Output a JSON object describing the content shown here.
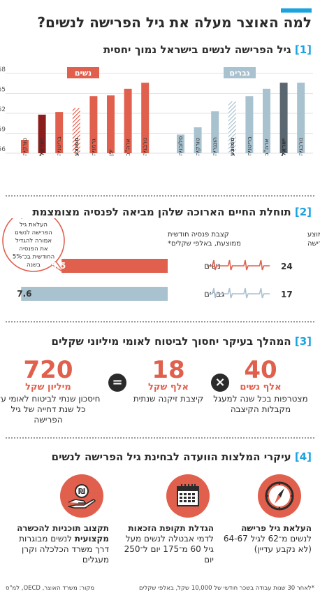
{
  "header": {
    "title": "למה האוצר מעלה את גיל הפרישה לנשים?"
  },
  "section1": {
    "num": "[1]",
    "title": "גיל הפרישה לנשים בישראל נמוך יחסית",
    "y_ticks": [
      "68",
      "65",
      "62",
      "59",
      "56"
    ],
    "women_label": "נשים",
    "men_label": "גברים",
    "colors": {
      "women": "#e0604d",
      "women_israel": "#8b1d1d",
      "men": "#a9c2cf",
      "men_israel": "#5a6670"
    },
    "chart_data": [
      {
        "type": "bar",
        "title": "נשים",
        "categories": [
          "טורקיה",
          "ישראל",
          "בריטניה",
          "ממוצע",
          "גרמניה",
          "יפן",
          "ארה\"ב",
          "נורבגיה"
        ],
        "values": [
          58,
          61.8,
          62.2,
          62.8,
          64.6,
          64.7,
          65.7,
          66.6
        ],
        "highlight": [
          "ישראל",
          "ממוצע"
        ],
        "ylim": [
          56,
          68
        ]
      },
      {
        "type": "bar",
        "title": "גברים",
        "categories": [
          "סלובניה",
          "טורקיה",
          "הונגריה",
          "ממוצע",
          "בריטניה",
          "ארה\"ב",
          "ישראל",
          "נורבגיה"
        ],
        "values": [
          58.8,
          59.9,
          62.3,
          63.8,
          64.6,
          65.7,
          66.6,
          66.6
        ],
        "highlight": [
          "ישראל",
          "ממוצע"
        ],
        "ylim": [
          56,
          68
        ]
      }
    ]
  },
  "section2": {
    "num": "[2]",
    "title": "תוחלת החיים הארוכה שלהן מביאה לפנסיה מצומצמת",
    "col_years_label": "מס' שנות החיים הממוצע לאחר הפרישה",
    "col_pension_label": "קצבת פנסיה חודשית ממוצעת, באלפי שקלים*",
    "callout": "תיאורטית, העלאת גיל הפרישה לנשים אמורה להגדיל את הפנסיה החודשית בכ־5% בשנה",
    "rows": [
      {
        "label": "נשים",
        "years": "24",
        "pension": "5.5",
        "pension_value": 5.5,
        "color": "#e0604d"
      },
      {
        "label": "גברים",
        "years": "17",
        "pension": "7.6",
        "pension_value": 7.6,
        "color": "#a9c2cf"
      }
    ]
  },
  "section3": {
    "num": "[3]",
    "title": "המהלך בעיקר יחסוך לביטוח לאומי מיליוני שקלים",
    "stats": [
      {
        "num": "40",
        "unit": "אלף נשים",
        "desc": "מצטרפות בכל שנה למעגל מקבלות הקיצבה"
      },
      {
        "num": "18",
        "unit": "אלף שקל",
        "desc": "קיצבת זיקנה שנתית"
      },
      {
        "num": "720",
        "unit": "מיליון שקל",
        "desc": "חיסכון שנתי לביטוח לאומי על כל שנת דחייה של גיל הפרישה"
      }
    ],
    "op_times": "×",
    "op_equals": "="
  },
  "section4": {
    "num": "[4]",
    "title": "עיקרי המלצות הוועדה לבחינת גיל הפרישה לנשים",
    "items": [
      {
        "icon": "compass-icon",
        "bold": "העלאת גיל פרישה",
        "rest": " לנשים מ־62 לגיל 64-67 (לא נקבע עדיין)"
      },
      {
        "icon": "calendar-icon",
        "bold": "הגדלת תקופת הזכאות",
        "rest": " לדמי אבטלה לנשים מעל גיל 60 מ־175 יום ל־250 יום"
      },
      {
        "icon": "hand-coin-icon",
        "bold": "תקצוב תוכניות להכשרה מקצועית",
        "rest": " לנשים מבוגרות דרך משרד הכלכלה וקרן מעגלים"
      }
    ]
  },
  "footer": {
    "source": "מקור: משרד האוצר, OECD, למ\"ס",
    "note": "*לאחר 30 שנות עבודה בשכר חודשי של 10,000 שקל, באלפי שקלים"
  }
}
